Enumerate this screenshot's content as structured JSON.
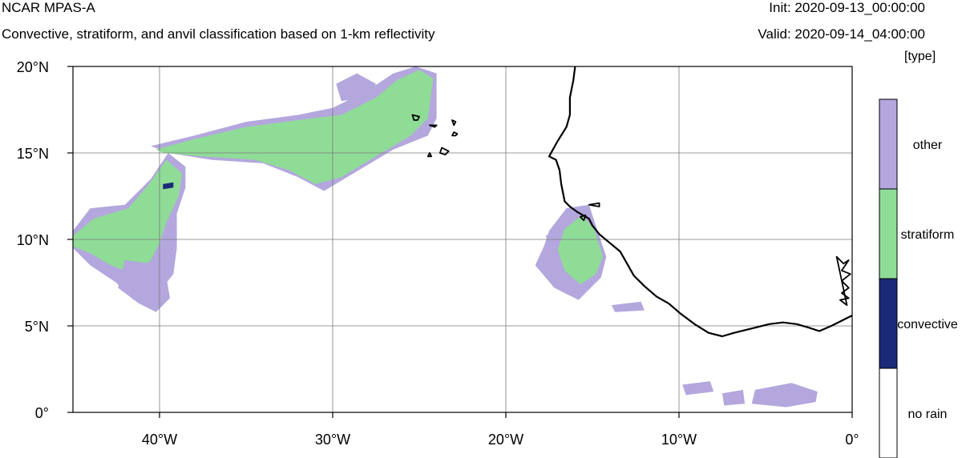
{
  "header": {
    "title": "NCAR MPAS-A",
    "subtitle": "Convective, stratiform, and anvil classification based on 1-km reflectivity",
    "init": "Init: 2020-09-13_00:00:00",
    "valid": "Valid: 2020-09-14_04:00:00"
  },
  "colorbar": {
    "units": "[type]",
    "categories": [
      {
        "label": "other",
        "color": "#b3a7dd"
      },
      {
        "label": "stratiform",
        "color": "#8fdc97"
      },
      {
        "label": "convective",
        "color": "#1b2a78"
      },
      {
        "label": "no rain",
        "color": "#ffffff"
      }
    ]
  },
  "map": {
    "lon_range": [
      -45,
      0
    ],
    "lat_range": [
      0,
      20
    ],
    "x_ticks": [
      {
        "lon": -40,
        "label": "40°W"
      },
      {
        "lon": -30,
        "label": "30°W"
      },
      {
        "lon": -20,
        "label": "20°W"
      },
      {
        "lon": -10,
        "label": "10°W"
      },
      {
        "lon": 0,
        "label": "0°"
      }
    ],
    "y_ticks": [
      {
        "lat": 20,
        "label": "20°N"
      },
      {
        "lat": 15,
        "label": "15°N"
      },
      {
        "lat": 10,
        "label": "10°N"
      },
      {
        "lat": 5,
        "label": "5°N"
      },
      {
        "lat": 0,
        "label": "0°"
      }
    ],
    "grid": true,
    "features": [
      {
        "name": "western-band-other",
        "category": "other",
        "points": [
          [
            -45,
            10.5
          ],
          [
            -44,
            11.8
          ],
          [
            -42,
            12.0
          ],
          [
            -40.5,
            13.5
          ],
          [
            -39.5,
            15.0
          ],
          [
            -38.5,
            14.2
          ],
          [
            -38.5,
            13.0
          ],
          [
            -39.0,
            11.5
          ],
          [
            -39.0,
            9.5
          ],
          [
            -39.2,
            8.0
          ],
          [
            -40.0,
            7.0
          ],
          [
            -41.5,
            6.5
          ],
          [
            -42.5,
            7.5
          ],
          [
            -44,
            8.5
          ],
          [
            -45,
            9.5
          ]
        ]
      },
      {
        "name": "western-band-stratiform",
        "category": "stratiform",
        "points": [
          [
            -45,
            10.2
          ],
          [
            -43.8,
            11.2
          ],
          [
            -41.8,
            11.8
          ],
          [
            -40.6,
            13.2
          ],
          [
            -39.6,
            14.6
          ],
          [
            -38.7,
            13.8
          ],
          [
            -38.9,
            12.5
          ],
          [
            -39.6,
            11.0
          ],
          [
            -40.0,
            9.8
          ],
          [
            -40.5,
            8.8
          ],
          [
            -41.5,
            8.0
          ],
          [
            -42.8,
            8.5
          ],
          [
            -44,
            9.2
          ],
          [
            -45,
            9.6
          ]
        ]
      },
      {
        "name": "west-lower-lobe-other",
        "category": "other",
        "points": [
          [
            -42.0,
            8.8
          ],
          [
            -40.5,
            8.6
          ],
          [
            -39.6,
            7.8
          ],
          [
            -39.4,
            6.6
          ],
          [
            -40.2,
            5.8
          ],
          [
            -41.2,
            6.3
          ],
          [
            -42.4,
            7.2
          ]
        ]
      },
      {
        "name": "central-band-other",
        "category": "other",
        "points": [
          [
            -40.5,
            15.4
          ],
          [
            -38,
            16.0
          ],
          [
            -35,
            16.8
          ],
          [
            -32,
            17.2
          ],
          [
            -30,
            17.6
          ],
          [
            -28,
            18.6
          ],
          [
            -26.5,
            19.6
          ],
          [
            -25.2,
            20.0
          ],
          [
            -24.0,
            19.6
          ],
          [
            -24.0,
            17.0
          ],
          [
            -24.5,
            16.0
          ],
          [
            -26.5,
            15.2
          ],
          [
            -28.5,
            14.0
          ],
          [
            -30.5,
            12.8
          ],
          [
            -32.0,
            13.6
          ],
          [
            -34.0,
            14.4
          ],
          [
            -37.0,
            14.6
          ],
          [
            -39.5,
            15.0
          ]
        ]
      },
      {
        "name": "central-band-stratiform",
        "category": "stratiform",
        "points": [
          [
            -40.2,
            15.2
          ],
          [
            -38,
            15.8
          ],
          [
            -35,
            16.5
          ],
          [
            -32,
            16.9
          ],
          [
            -29.5,
            17.2
          ],
          [
            -27.5,
            18.2
          ],
          [
            -26.3,
            19.2
          ],
          [
            -25.0,
            19.8
          ],
          [
            -24.2,
            19.3
          ],
          [
            -24.5,
            17.0
          ],
          [
            -25.5,
            16.0
          ],
          [
            -27.5,
            14.8
          ],
          [
            -29.5,
            13.6
          ],
          [
            -31.0,
            13.2
          ],
          [
            -32.5,
            14.0
          ],
          [
            -34.5,
            14.6
          ],
          [
            -37.5,
            14.8
          ],
          [
            -39.8,
            15.0
          ]
        ]
      },
      {
        "name": "upper-central-patch-other",
        "category": "other",
        "points": [
          [
            -29.5,
            18.0
          ],
          [
            -28.0,
            18.2
          ],
          [
            -27.5,
            19.0
          ],
          [
            -28.6,
            19.6
          ],
          [
            -29.8,
            19.0
          ]
        ]
      },
      {
        "name": "african-coast-cluster-other",
        "category": "other",
        "points": [
          [
            -17.5,
            10.5
          ],
          [
            -16.5,
            11.8
          ],
          [
            -15.2,
            12.0
          ],
          [
            -14.8,
            10.8
          ],
          [
            -14.2,
            9.0
          ],
          [
            -14.5,
            7.8
          ],
          [
            -15.8,
            6.5
          ],
          [
            -17.2,
            7.2
          ],
          [
            -18.3,
            8.5
          ],
          [
            -17.8,
            9.6
          ]
        ]
      },
      {
        "name": "african-coast-cluster-stratiform",
        "category": "stratiform",
        "points": [
          [
            -16.6,
            10.6
          ],
          [
            -15.6,
            11.4
          ],
          [
            -14.9,
            10.6
          ],
          [
            -14.4,
            9.0
          ],
          [
            -14.8,
            8.0
          ],
          [
            -15.7,
            7.4
          ],
          [
            -16.6,
            8.2
          ],
          [
            -17.0,
            9.4
          ]
        ]
      },
      {
        "name": "small-cell-a",
        "category": "other",
        "points": [
          [
            -17.7,
            10.2
          ],
          [
            -17.2,
            10.5
          ],
          [
            -17.0,
            9.9
          ],
          [
            -17.5,
            9.7
          ]
        ]
      },
      {
        "name": "equatorial-patch-a",
        "category": "other",
        "points": [
          [
            -5.6,
            1.3
          ],
          [
            -3.5,
            1.7
          ],
          [
            -2.0,
            1.2
          ],
          [
            -2.1,
            0.6
          ],
          [
            -3.8,
            0.3
          ],
          [
            -5.8,
            0.5
          ]
        ]
      },
      {
        "name": "equatorial-patch-b",
        "category": "other",
        "points": [
          [
            -9.8,
            1.6
          ],
          [
            -8.2,
            1.8
          ],
          [
            -8.0,
            1.2
          ],
          [
            -9.6,
            1.0
          ]
        ]
      },
      {
        "name": "equatorial-patch-c",
        "category": "other",
        "points": [
          [
            -7.5,
            1.1
          ],
          [
            -6.3,
            1.3
          ],
          [
            -6.2,
            0.5
          ],
          [
            -7.4,
            0.4
          ]
        ]
      },
      {
        "name": "mid-ocean-specks",
        "category": "other",
        "points": [
          [
            -13.9,
            6.2
          ],
          [
            -12.2,
            6.4
          ],
          [
            -12.0,
            5.9
          ],
          [
            -13.7,
            5.8
          ]
        ]
      },
      {
        "name": "convective-cells",
        "category": "convective",
        "points": [
          [
            -39.8,
            13.2
          ],
          [
            -39.2,
            13.3
          ],
          [
            -39.2,
            13.0
          ],
          [
            -39.8,
            12.9
          ]
        ]
      }
    ],
    "coastline": [
      [
        -16.0,
        20.0
      ],
      [
        -16.1,
        19.2
      ],
      [
        -16.3,
        18.2
      ],
      [
        -16.3,
        17.2
      ],
      [
        -16.5,
        16.5
      ],
      [
        -17.0,
        15.7
      ],
      [
        -17.5,
        14.8
      ],
      [
        -17.1,
        14.6
      ],
      [
        -16.9,
        14.0
      ],
      [
        -16.8,
        13.2
      ],
      [
        -16.6,
        12.2
      ],
      [
        -16.3,
        11.9
      ],
      [
        -15.9,
        11.6
      ],
      [
        -15.2,
        11.2
      ],
      [
        -15.0,
        10.8
      ],
      [
        -14.6,
        10.3
      ],
      [
        -14.0,
        9.8
      ],
      [
        -13.4,
        9.3
      ],
      [
        -13.0,
        8.6
      ],
      [
        -12.6,
        7.9
      ],
      [
        -12.0,
        7.3
      ],
      [
        -11.3,
        6.7
      ],
      [
        -10.6,
        6.3
      ],
      [
        -9.9,
        5.7
      ],
      [
        -9.1,
        5.1
      ],
      [
        -8.3,
        4.6
      ],
      [
        -7.5,
        4.4
      ],
      [
        -6.8,
        4.6
      ],
      [
        -5.6,
        4.9
      ],
      [
        -4.8,
        5.1
      ],
      [
        -4.0,
        5.2
      ],
      [
        -3.2,
        5.1
      ],
      [
        -2.5,
        4.9
      ],
      [
        -1.9,
        4.7
      ],
      [
        -1.2,
        5.0
      ],
      [
        -0.6,
        5.3
      ],
      [
        0,
        5.6
      ]
    ],
    "islands": [
      [
        [
          -25.4,
          17.2
        ],
        [
          -25.0,
          17.1
        ],
        [
          -25.1,
          16.9
        ],
        [
          -25.3,
          16.9
        ]
      ],
      [
        [
          -24.4,
          16.6
        ],
        [
          -24.0,
          16.6
        ],
        [
          -24.1,
          16.5
        ]
      ],
      [
        [
          -23.1,
          16.9
        ],
        [
          -22.9,
          16.8
        ],
        [
          -23.0,
          16.6
        ]
      ],
      [
        [
          -23.0,
          16.2
        ],
        [
          -22.8,
          16.1
        ],
        [
          -22.9,
          16.0
        ],
        [
          -23.1,
          16.0
        ]
      ],
      [
        [
          -24.4,
          15.0
        ],
        [
          -24.3,
          14.8
        ],
        [
          -24.5,
          14.8
        ]
      ],
      [
        [
          -23.7,
          15.3
        ],
        [
          -23.3,
          15.1
        ],
        [
          -23.5,
          14.9
        ],
        [
          -23.8,
          15.0
        ]
      ],
      [
        [
          -15.2,
          12.0
        ],
        [
          -14.6,
          12.1
        ],
        [
          -14.6,
          11.9
        ]
      ],
      [
        [
          -15.7,
          11.3
        ],
        [
          -15.4,
          11.4
        ],
        [
          -15.5,
          11.1
        ]
      ],
      [
        [
          -0.9,
          9.0
        ],
        [
          -0.5,
          8.6
        ],
        [
          -0.2,
          8.8
        ],
        [
          -0.6,
          8.2
        ],
        [
          -0.1,
          8.0
        ],
        [
          -0.6,
          7.6
        ],
        [
          -0.2,
          7.2
        ],
        [
          -0.6,
          6.9
        ],
        [
          -0.2,
          6.6
        ],
        [
          -0.7,
          6.5
        ],
        [
          -0.3,
          6.2
        ]
      ]
    ]
  }
}
